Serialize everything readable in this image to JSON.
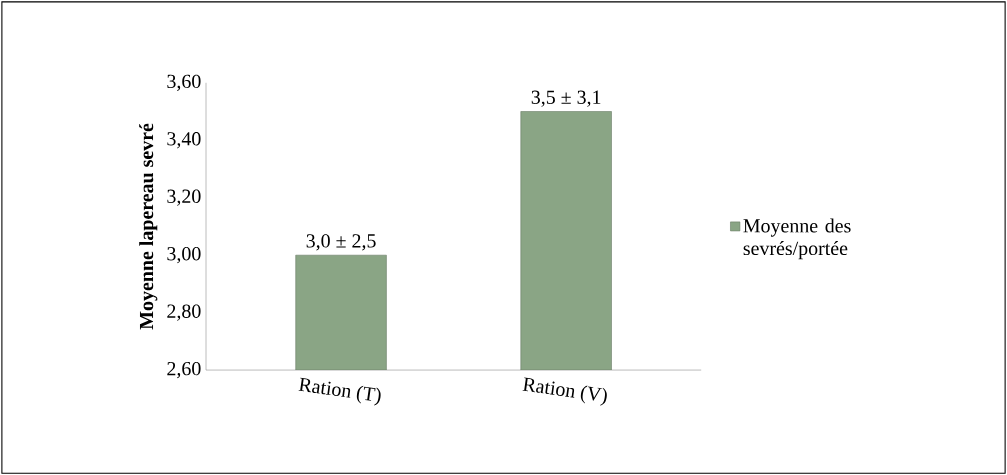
{
  "chart_data": {
    "type": "bar",
    "ylabel": "Moyenne lapereau sevré",
    "categories": [
      "Ration (T)",
      "Ration (V)"
    ],
    "series": [
      {
        "name": "Moyenne des sevrés/portée",
        "color": "#8aa585",
        "values": [
          3.0,
          3.5
        ],
        "value_labels": [
          "3,0 ± 2,5",
          "3,5 ± 3,1"
        ]
      }
    ],
    "ylim": [
      2.6,
      3.6
    ],
    "yticks": [
      {
        "value": 2.6,
        "label": "2,60"
      },
      {
        "value": 2.8,
        "label": "2,80"
      },
      {
        "value": 3.0,
        "label": "3,00"
      },
      {
        "value": 3.2,
        "label": "3,20"
      },
      {
        "value": 3.4,
        "label": "3,40"
      },
      {
        "value": 3.6,
        "label": "3,60"
      }
    ],
    "grid": false,
    "legend": "right"
  }
}
